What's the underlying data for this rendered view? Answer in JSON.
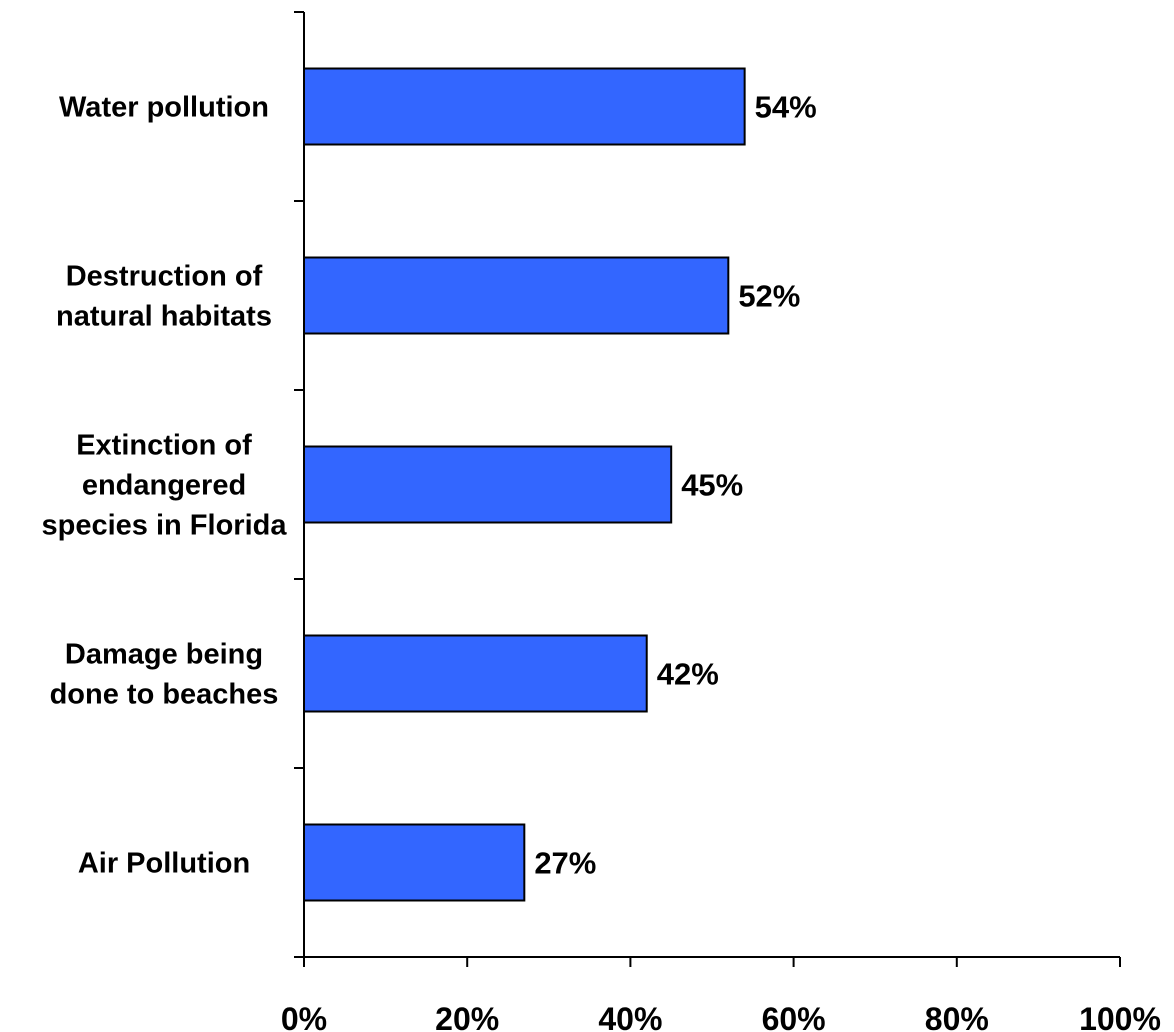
{
  "chart_data": {
    "type": "bar",
    "orientation": "horizontal",
    "categories": [
      [
        "Water pollution"
      ],
      [
        "Destruction of",
        "natural habitats"
      ],
      [
        "Extinction of",
        "endangered",
        "species in Florida"
      ],
      [
        "Damage being",
        "done to beaches"
      ],
      [
        "Air Pollution"
      ]
    ],
    "values": [
      54,
      52,
      45,
      42,
      27
    ],
    "value_labels": [
      "54%",
      "52%",
      "45%",
      "42%",
      "27%"
    ],
    "xlim": [
      0,
      100
    ],
    "x_ticks": [
      0,
      20,
      40,
      60,
      80,
      100
    ],
    "x_tick_labels": [
      "0%",
      "20%",
      "40%",
      "60%",
      "80%",
      "100%"
    ],
    "bar_color": "#3366FF",
    "title": "",
    "xlabel": "",
    "ylabel": ""
  }
}
